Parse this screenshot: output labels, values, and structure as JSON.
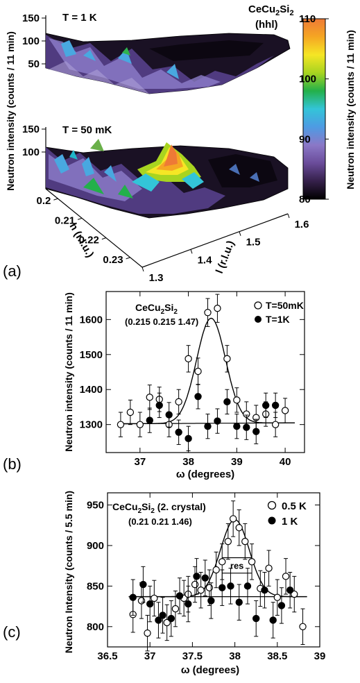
{
  "figure": {
    "panels": [
      "(a)",
      "(b)",
      "(c)"
    ]
  },
  "chart_data": [
    {
      "type": "heatmap",
      "panel": "(a)",
      "title": "CeCu2Si2 (hhl)",
      "title_main": "CeCu",
      "title_sub1": "2",
      "title_mid": "Si",
      "title_sub2": "2",
      "title_line2": "(hhl)",
      "surfaces": [
        {
          "label": "T = 1 K",
          "zticks": [
            50,
            100,
            150
          ],
          "peak": false
        },
        {
          "label": "T = 50 mK",
          "zticks": [
            100,
            150
          ],
          "peak": true
        }
      ],
      "zlabel": "Neutron intensity (counts / 11 min)",
      "xlabel": "h (r.l.u.)",
      "xticks": [
        0.2,
        0.21,
        0.22,
        0.23
      ],
      "ylabel": "l (r.l.u.)",
      "yticks": [
        1.3,
        1.4,
        1.5,
        1.6
      ],
      "colorbar": {
        "label": "Neutron intensity (counts / 11 min)",
        "range": [
          80,
          110
        ],
        "ticks": [
          80,
          90,
          100,
          110
        ],
        "colors": [
          "#000000",
          "#35204a",
          "#6a4c9a",
          "#8b78c7",
          "#4e9be3",
          "#33c4d8",
          "#23b04a",
          "#a8d420",
          "#f5e625",
          "#f5a623",
          "#ee7a36"
        ]
      }
    },
    {
      "type": "scatter",
      "panel": "(b)",
      "title": "CeCu2Si2",
      "title_main": "CeCu",
      "title_sub1": "2",
      "title_mid": "Si",
      "title_sub2": "2",
      "subtitle": "(0.215 0.215 1.47)",
      "xlabel": "ω (degrees)",
      "ylabel": "Neutron intensity (counts / 11 min)",
      "xlim": [
        36.3,
        40.4
      ],
      "ylim": [
        1220,
        1680
      ],
      "xticks": [
        37,
        38,
        39,
        40
      ],
      "yticks": [
        1300,
        1400,
        1500,
        1600
      ],
      "legend_position": "top-right",
      "series": [
        {
          "name": "T=50mK",
          "marker": "open-circle",
          "x": [
            36.6,
            36.8,
            37.0,
            37.2,
            37.4,
            37.6,
            37.8,
            38.0,
            38.2,
            38.4,
            38.6,
            38.8,
            39.0,
            39.2,
            39.4,
            39.6,
            39.8,
            40.0
          ],
          "y": [
            1300,
            1335,
            1300,
            1378,
            1372,
            1300,
            1365,
            1488,
            1452,
            1620,
            1632,
            1488,
            1370,
            1330,
            1320,
            1330,
            1300,
            1340
          ],
          "err": [
            35,
            35,
            35,
            35,
            35,
            35,
            35,
            38,
            38,
            40,
            40,
            38,
            35,
            35,
            35,
            35,
            35,
            35
          ]
        },
        {
          "name": "T=1K",
          "marker": "filled-circle",
          "x": [
            37.2,
            37.4,
            37.6,
            37.8,
            38.0,
            38.2,
            38.4,
            38.6,
            38.8,
            39.0,
            39.2,
            39.4,
            39.6,
            39.8
          ],
          "y": [
            1312,
            1355,
            1328,
            1278,
            1260,
            1380,
            1295,
            1310,
            1365,
            1295,
            1292,
            1280,
            1355,
            1355
          ],
          "err": [
            35,
            35,
            35,
            35,
            35,
            35,
            35,
            35,
            35,
            35,
            35,
            35,
            35,
            35
          ]
        }
      ],
      "fit": {
        "baseline": [
          1302,
          0.0075
        ],
        "amplitude": 300,
        "center": 38.47,
        "sigma": 0.3
      }
    },
    {
      "type": "scatter",
      "panel": "(c)",
      "title": "CeCu2Si2 (2. crystal)",
      "title_main": "CeCu",
      "title_sub1": "2",
      "title_mid": "Si",
      "title_sub2": "2",
      "title_suffix": " (2. crystal)",
      "subtitle": "(0.21 0.21 1.46)",
      "xlabel": "ω (degrees)",
      "ylabel": "Neutron Intensity (counts / 5.5 min)",
      "xlim": [
        36.5,
        39
      ],
      "ylim": [
        775,
        965
      ],
      "xticks": [
        36.5,
        37,
        37.5,
        38,
        38.5,
        39
      ],
      "yticks": [
        800,
        850,
        900,
        950
      ],
      "legend_position": "top-right",
      "annotation": "res",
      "series": [
        {
          "name": "0.5 K",
          "marker": "open-circle",
          "x": [
            36.8,
            36.9,
            36.97,
            37.05,
            37.2,
            37.3,
            37.4,
            37.45,
            37.53,
            37.6,
            37.7,
            37.78,
            37.85,
            37.92,
            37.98,
            38.05,
            38.12,
            38.2,
            38.3,
            38.4,
            38.5,
            38.6,
            38.7,
            38.8
          ],
          "y": [
            815,
            832,
            792,
            835,
            805,
            822,
            835,
            840,
            852,
            845,
            848,
            870,
            880,
            905,
            933,
            922,
            905,
            880,
            847,
            872,
            836,
            862,
            840,
            800
          ],
          "err": [
            22,
            22,
            22,
            22,
            22,
            22,
            22,
            22,
            22,
            22,
            22,
            22,
            22,
            22,
            22,
            22,
            22,
            22,
            22,
            22,
            22,
            22,
            22,
            22
          ]
        },
        {
          "name": "1 K",
          "marker": "filled-circle",
          "x": [
            36.8,
            36.92,
            37.0,
            37.1,
            37.15,
            37.25,
            37.35,
            37.45,
            37.55,
            37.65,
            37.72,
            37.85,
            37.95,
            38.05,
            38.15,
            38.25,
            38.35,
            38.45,
            38.55,
            38.65
          ],
          "y": [
            836,
            852,
            828,
            808,
            814,
            810,
            838,
            828,
            862,
            860,
            832,
            848,
            850,
            830,
            850,
            810,
            845,
            808,
            826,
            845
          ],
          "err": [
            22,
            22,
            22,
            22,
            22,
            22,
            22,
            22,
            22,
            22,
            22,
            22,
            22,
            22,
            22,
            22,
            22,
            22,
            22,
            22
          ]
        }
      ],
      "fit": {
        "baseline": 837,
        "amplitude": 95,
        "center": 38.0,
        "sigma": 0.17
      },
      "res_bar": {
        "x0": 37.85,
        "x1": 38.2,
        "y_top": 885,
        "y_bottom": 866
      }
    }
  ]
}
